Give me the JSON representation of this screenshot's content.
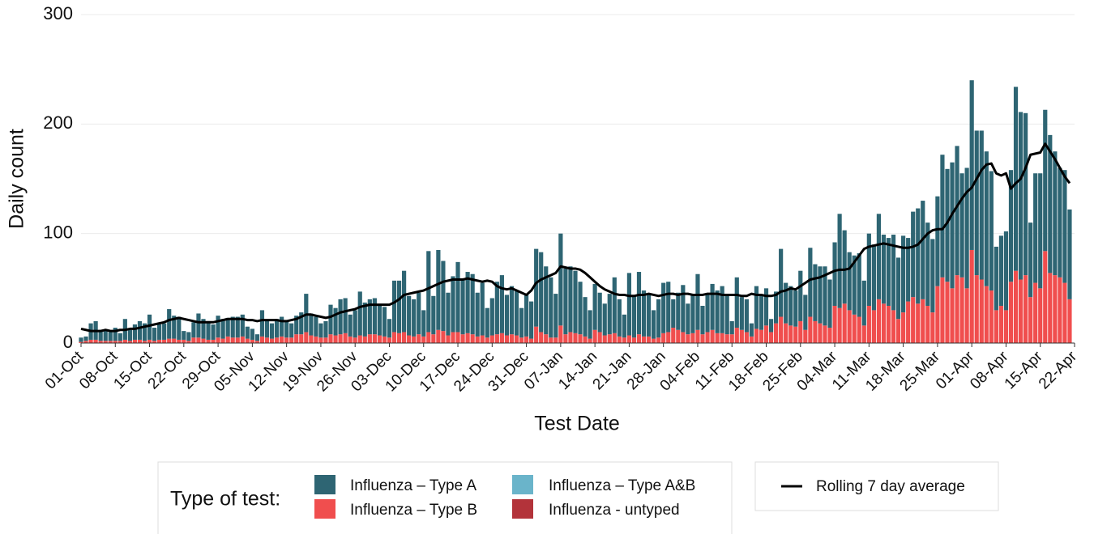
{
  "chart_data": {
    "type": "bar",
    "stacked": true,
    "x_label": "Test Date",
    "y_label": "Daily count",
    "legend_title": "Type of test:",
    "ylim": [
      0,
      300
    ],
    "yticks": [
      0,
      100,
      200,
      300
    ],
    "grid": true,
    "categories": [
      "01-Oct",
      null,
      null,
      null,
      null,
      null,
      null,
      "08-Oct",
      null,
      null,
      null,
      null,
      null,
      null,
      "15-Oct",
      null,
      null,
      null,
      null,
      null,
      null,
      "22-Oct",
      null,
      null,
      null,
      null,
      null,
      null,
      "29-Oct",
      null,
      null,
      null,
      null,
      null,
      null,
      "05-Nov",
      null,
      null,
      null,
      null,
      null,
      null,
      "12-Nov",
      null,
      null,
      null,
      null,
      null,
      null,
      "19-Nov",
      null,
      null,
      null,
      null,
      null,
      null,
      "26-Nov",
      null,
      null,
      null,
      null,
      null,
      null,
      "03-Dec",
      null,
      null,
      null,
      null,
      null,
      null,
      "10-Dec",
      null,
      null,
      null,
      null,
      null,
      null,
      "17-Dec",
      null,
      null,
      null,
      null,
      null,
      null,
      "24-Dec",
      null,
      null,
      null,
      null,
      null,
      null,
      "31-Dec",
      null,
      null,
      null,
      null,
      null,
      null,
      "07-Jan",
      null,
      null,
      null,
      null,
      null,
      null,
      "14-Jan",
      null,
      null,
      null,
      null,
      null,
      null,
      "21-Jan",
      null,
      null,
      null,
      null,
      null,
      null,
      "28-Jan",
      null,
      null,
      null,
      null,
      null,
      null,
      "04-Feb",
      null,
      null,
      null,
      null,
      null,
      null,
      "11-Feb",
      null,
      null,
      null,
      null,
      null,
      null,
      "18-Feb",
      null,
      null,
      null,
      null,
      null,
      null,
      "25-Feb",
      null,
      null,
      null,
      null,
      null,
      null,
      "04-Mar",
      null,
      null,
      null,
      null,
      null,
      null,
      "11-Mar",
      null,
      null,
      null,
      null,
      null,
      null,
      "18-Mar",
      null,
      null,
      null,
      null,
      null,
      null,
      "25-Mar",
      null,
      null,
      null,
      null,
      null,
      null,
      "01-Apr",
      null,
      null,
      null,
      null,
      null,
      null,
      "08-Apr",
      null,
      null,
      null,
      null,
      null,
      null,
      "15-Apr",
      null,
      null,
      null,
      null,
      null,
      null,
      "22-Apr"
    ],
    "series": [
      {
        "name": "Influenza – Type A",
        "color": "#2e6573",
        "values": [
          4,
          4,
          15,
          17,
          10,
          10,
          8,
          12,
          7,
          19,
          10,
          14,
          17,
          16,
          23,
          12,
          14,
          15,
          27,
          21,
          21,
          8,
          8,
          14,
          22,
          18,
          17,
          14,
          20,
          18,
          17,
          19,
          19,
          20,
          11,
          10,
          6,
          24,
          15,
          14,
          17,
          18,
          15,
          13,
          17,
          20,
          35,
          20,
          18,
          13,
          15,
          27,
          25,
          32,
          32,
          20,
          25,
          40,
          31,
          32,
          33,
          27,
          27,
          17,
          47,
          48,
          56,
          36,
          34,
          38,
          24,
          74,
          35,
          73,
          64,
          39,
          51,
          64,
          50,
          56,
          55,
          40,
          48,
          27,
          34,
          48,
          53,
          37,
          44,
          41,
          27,
          39,
          34,
          71,
          73,
          62,
          55,
          40,
          84,
          60,
          60,
          57,
          48,
          36,
          26,
          42,
          36,
          29,
          37,
          51,
          34,
          21,
          57,
          39,
          57,
          42,
          38,
          26,
          35,
          46,
          46,
          26,
          34,
          43,
          28,
          35,
          51,
          26,
          35,
          42,
          39,
          43,
          36,
          12,
          46,
          30,
          30,
          12,
          39,
          32,
          34,
          12,
          29,
          62,
          37,
          36,
          33,
          46,
          32,
          63,
          52,
          52,
          54,
          44,
          58,
          86,
          67,
          53,
          54,
          58,
          41,
          66,
          60,
          78,
          63,
          62,
          69,
          56,
          70,
          58,
          78,
          87,
          90,
          76,
          67,
          82,
          112,
          103,
          115,
          118,
          95,
          110,
          155,
          132,
          136,
          123,
          109,
          58,
          64,
          72,
          102,
          168,
          153,
          148,
          68,
          100,
          105,
          129,
          126,
          113,
          100,
          103,
          82,
          null
        ]
      },
      {
        "name": "Influenza – Type B",
        "color": "#f04e4e",
        "values": [
          1,
          2,
          3,
          3,
          2,
          2,
          2,
          2,
          2,
          3,
          2,
          3,
          3,
          2,
          3,
          2,
          3,
          3,
          4,
          4,
          3,
          3,
          2,
          5,
          5,
          4,
          3,
          3,
          5,
          4,
          6,
          5,
          5,
          6,
          4,
          3,
          2,
          6,
          5,
          4,
          5,
          6,
          5,
          5,
          8,
          8,
          10,
          7,
          6,
          5,
          5,
          8,
          7,
          8,
          9,
          6,
          5,
          7,
          6,
          8,
          8,
          7,
          6,
          5,
          10,
          9,
          10,
          7,
          6,
          8,
          6,
          10,
          8,
          12,
          11,
          7,
          10,
          10,
          8,
          9,
          8,
          6,
          7,
          5,
          7,
          8,
          9,
          7,
          8,
          7,
          5,
          6,
          4,
          15,
          10,
          8,
          5,
          5,
          16,
          8,
          10,
          9,
          8,
          6,
          4,
          12,
          10,
          7,
          8,
          9,
          6,
          5,
          7,
          5,
          8,
          6,
          6,
          4,
          5,
          9,
          10,
          14,
          12,
          10,
          8,
          9,
          12,
          8,
          10,
          12,
          9,
          9,
          8,
          8,
          14,
          12,
          10,
          6,
          13,
          12,
          16,
          10,
          18,
          24,
          18,
          16,
          15,
          20,
          12,
          24,
          20,
          18,
          16,
          14,
          34,
          32,
          36,
          30,
          26,
          24,
          16,
          34,
          30,
          40,
          36,
          34,
          30,
          22,
          28,
          38,
          42,
          36,
          40,
          34,
          28,
          52,
          60,
          56,
          50,
          62,
          60,
          50,
          85,
          62,
          58,
          52,
          48,
          30,
          34,
          30,
          56,
          66,
          58,
          62,
          42,
          55,
          50,
          84,
          64,
          62,
          60,
          55,
          40,
          null
        ]
      },
      {
        "name": "Influenza – Type A&B",
        "color": "#6ab4ca",
        "values": [
          0,
          0,
          0,
          0,
          0,
          0,
          0,
          0,
          0,
          0,
          0,
          0,
          0,
          0,
          0,
          0,
          0,
          0,
          0,
          0,
          0,
          0,
          0,
          0,
          0,
          0,
          0,
          0,
          0,
          0,
          0,
          0,
          0,
          0,
          0,
          0,
          0,
          0,
          0,
          0,
          0,
          0,
          0,
          0,
          0,
          0,
          0,
          0,
          0,
          0,
          0,
          0,
          0,
          0,
          0,
          0,
          0,
          0,
          0,
          0,
          0,
          0,
          0,
          0,
          0,
          0,
          0,
          0,
          0,
          0,
          0,
          0,
          0,
          0,
          0,
          0,
          0,
          0,
          0,
          0,
          0,
          0,
          0,
          0,
          0,
          0,
          0,
          0,
          0,
          0,
          0,
          0,
          0,
          0,
          0,
          0,
          0,
          0,
          0,
          0,
          0,
          0,
          0,
          0,
          0,
          0,
          0,
          0,
          0,
          0,
          0,
          0,
          0,
          0,
          0,
          0,
          0,
          0,
          0,
          0,
          0,
          0,
          0,
          0,
          0,
          0,
          0,
          0,
          0,
          0,
          0,
          0,
          0,
          0,
          0,
          0,
          0,
          0,
          0,
          0,
          0,
          0,
          0,
          0,
          0,
          0,
          0,
          0,
          0,
          0,
          0,
          0,
          0,
          0,
          0,
          0,
          0,
          0,
          0,
          0,
          0,
          0,
          0,
          0,
          0,
          0,
          0,
          0,
          0,
          0,
          0,
          0,
          0,
          0,
          0,
          0,
          0,
          0,
          0,
          0,
          0,
          0,
          0,
          0,
          0,
          0,
          0,
          0,
          0,
          0,
          0,
          0,
          0,
          0,
          0,
          0,
          0,
          0,
          0,
          0,
          0,
          0,
          0,
          null
        ]
      },
      {
        "name": "Influenza - untyped",
        "color": "#b3333a",
        "values": [
          0,
          0,
          0,
          0,
          0,
          0,
          0,
          0,
          0,
          0,
          0,
          0,
          0,
          0,
          0,
          0,
          0,
          0,
          0,
          0,
          0,
          0,
          0,
          0,
          0,
          0,
          0,
          0,
          0,
          0,
          0,
          0,
          0,
          0,
          0,
          0,
          0,
          0,
          0,
          0,
          0,
          0,
          0,
          0,
          0,
          0,
          0,
          0,
          0,
          0,
          0,
          0,
          0,
          0,
          0,
          0,
          0,
          0,
          0,
          0,
          0,
          0,
          0,
          0,
          0,
          0,
          0,
          0,
          0,
          0,
          0,
          0,
          0,
          0,
          0,
          0,
          0,
          0,
          0,
          0,
          0,
          0,
          0,
          0,
          0,
          0,
          0,
          0,
          0,
          0,
          0,
          0,
          0,
          0,
          0,
          0,
          0,
          0,
          0,
          0,
          0,
          0,
          0,
          0,
          0,
          0,
          0,
          0,
          0,
          0,
          0,
          0,
          0,
          0,
          0,
          0,
          0,
          0,
          0,
          0,
          0,
          0,
          0,
          0,
          0,
          0,
          0,
          0,
          0,
          0,
          0,
          0,
          0,
          0,
          0,
          0,
          0,
          0,
          0,
          0,
          0,
          0,
          0,
          0,
          0,
          0,
          0,
          0,
          0,
          0,
          0,
          0,
          0,
          0,
          0,
          0,
          0,
          0,
          0,
          0,
          0,
          0,
          0,
          0,
          0,
          0,
          0,
          0,
          0,
          0,
          0,
          0,
          0,
          0,
          0,
          0,
          0,
          0,
          0,
          0,
          0,
          0,
          0,
          0,
          0,
          0,
          0,
          0,
          0,
          0,
          0,
          0,
          0,
          0,
          0,
          0,
          0,
          0,
          0,
          0,
          0,
          0,
          0,
          null
        ]
      },
      {
        "name": "Rolling 7 day average",
        "type": "line",
        "color": "#000000",
        "values": [
          13,
          12,
          11,
          11,
          11,
          12,
          11,
          11,
          12,
          12,
          13,
          13,
          14,
          15,
          16,
          17,
          18,
          19,
          21,
          22,
          23,
          22,
          21,
          20,
          19,
          19,
          19,
          19,
          20,
          21,
          22,
          22,
          22,
          22,
          21,
          21,
          20,
          21,
          21,
          21,
          21,
          20,
          20,
          21,
          22,
          24,
          26,
          26,
          25,
          24,
          23,
          24,
          26,
          28,
          29,
          30,
          31,
          33,
          34,
          35,
          35,
          35,
          35,
          35,
          37,
          40,
          44,
          45,
          46,
          47,
          48,
          50,
          52,
          54,
          56,
          57,
          58,
          58,
          58,
          59,
          58,
          57,
          56,
          57,
          56,
          52,
          50,
          49,
          50,
          48,
          46,
          44,
          48,
          55,
          58,
          60,
          62,
          64,
          70,
          69,
          68,
          68,
          67,
          64,
          60,
          56,
          52,
          49,
          47,
          45,
          44,
          44,
          43,
          43,
          44,
          44,
          45,
          44,
          43,
          44,
          45,
          45,
          44,
          45,
          45,
          44,
          44,
          44,
          45,
          45,
          45,
          44,
          44,
          44,
          44,
          43,
          43,
          45,
          44,
          44,
          43,
          43,
          44,
          47,
          48,
          50,
          49,
          52,
          55,
          58,
          59,
          60,
          62,
          64,
          66,
          67,
          67,
          68,
          74,
          80,
          86,
          88,
          89,
          90,
          91,
          90,
          89,
          88,
          87,
          87,
          88,
          90,
          95,
          100,
          103,
          104,
          104,
          110,
          118,
          125,
          132,
          138,
          142,
          150,
          158,
          163,
          164,
          155,
          153,
          155,
          141,
          146,
          150,
          160,
          172,
          173,
          174,
          182,
          175,
          168,
          160,
          152,
          146,
          null
        ]
      }
    ]
  }
}
